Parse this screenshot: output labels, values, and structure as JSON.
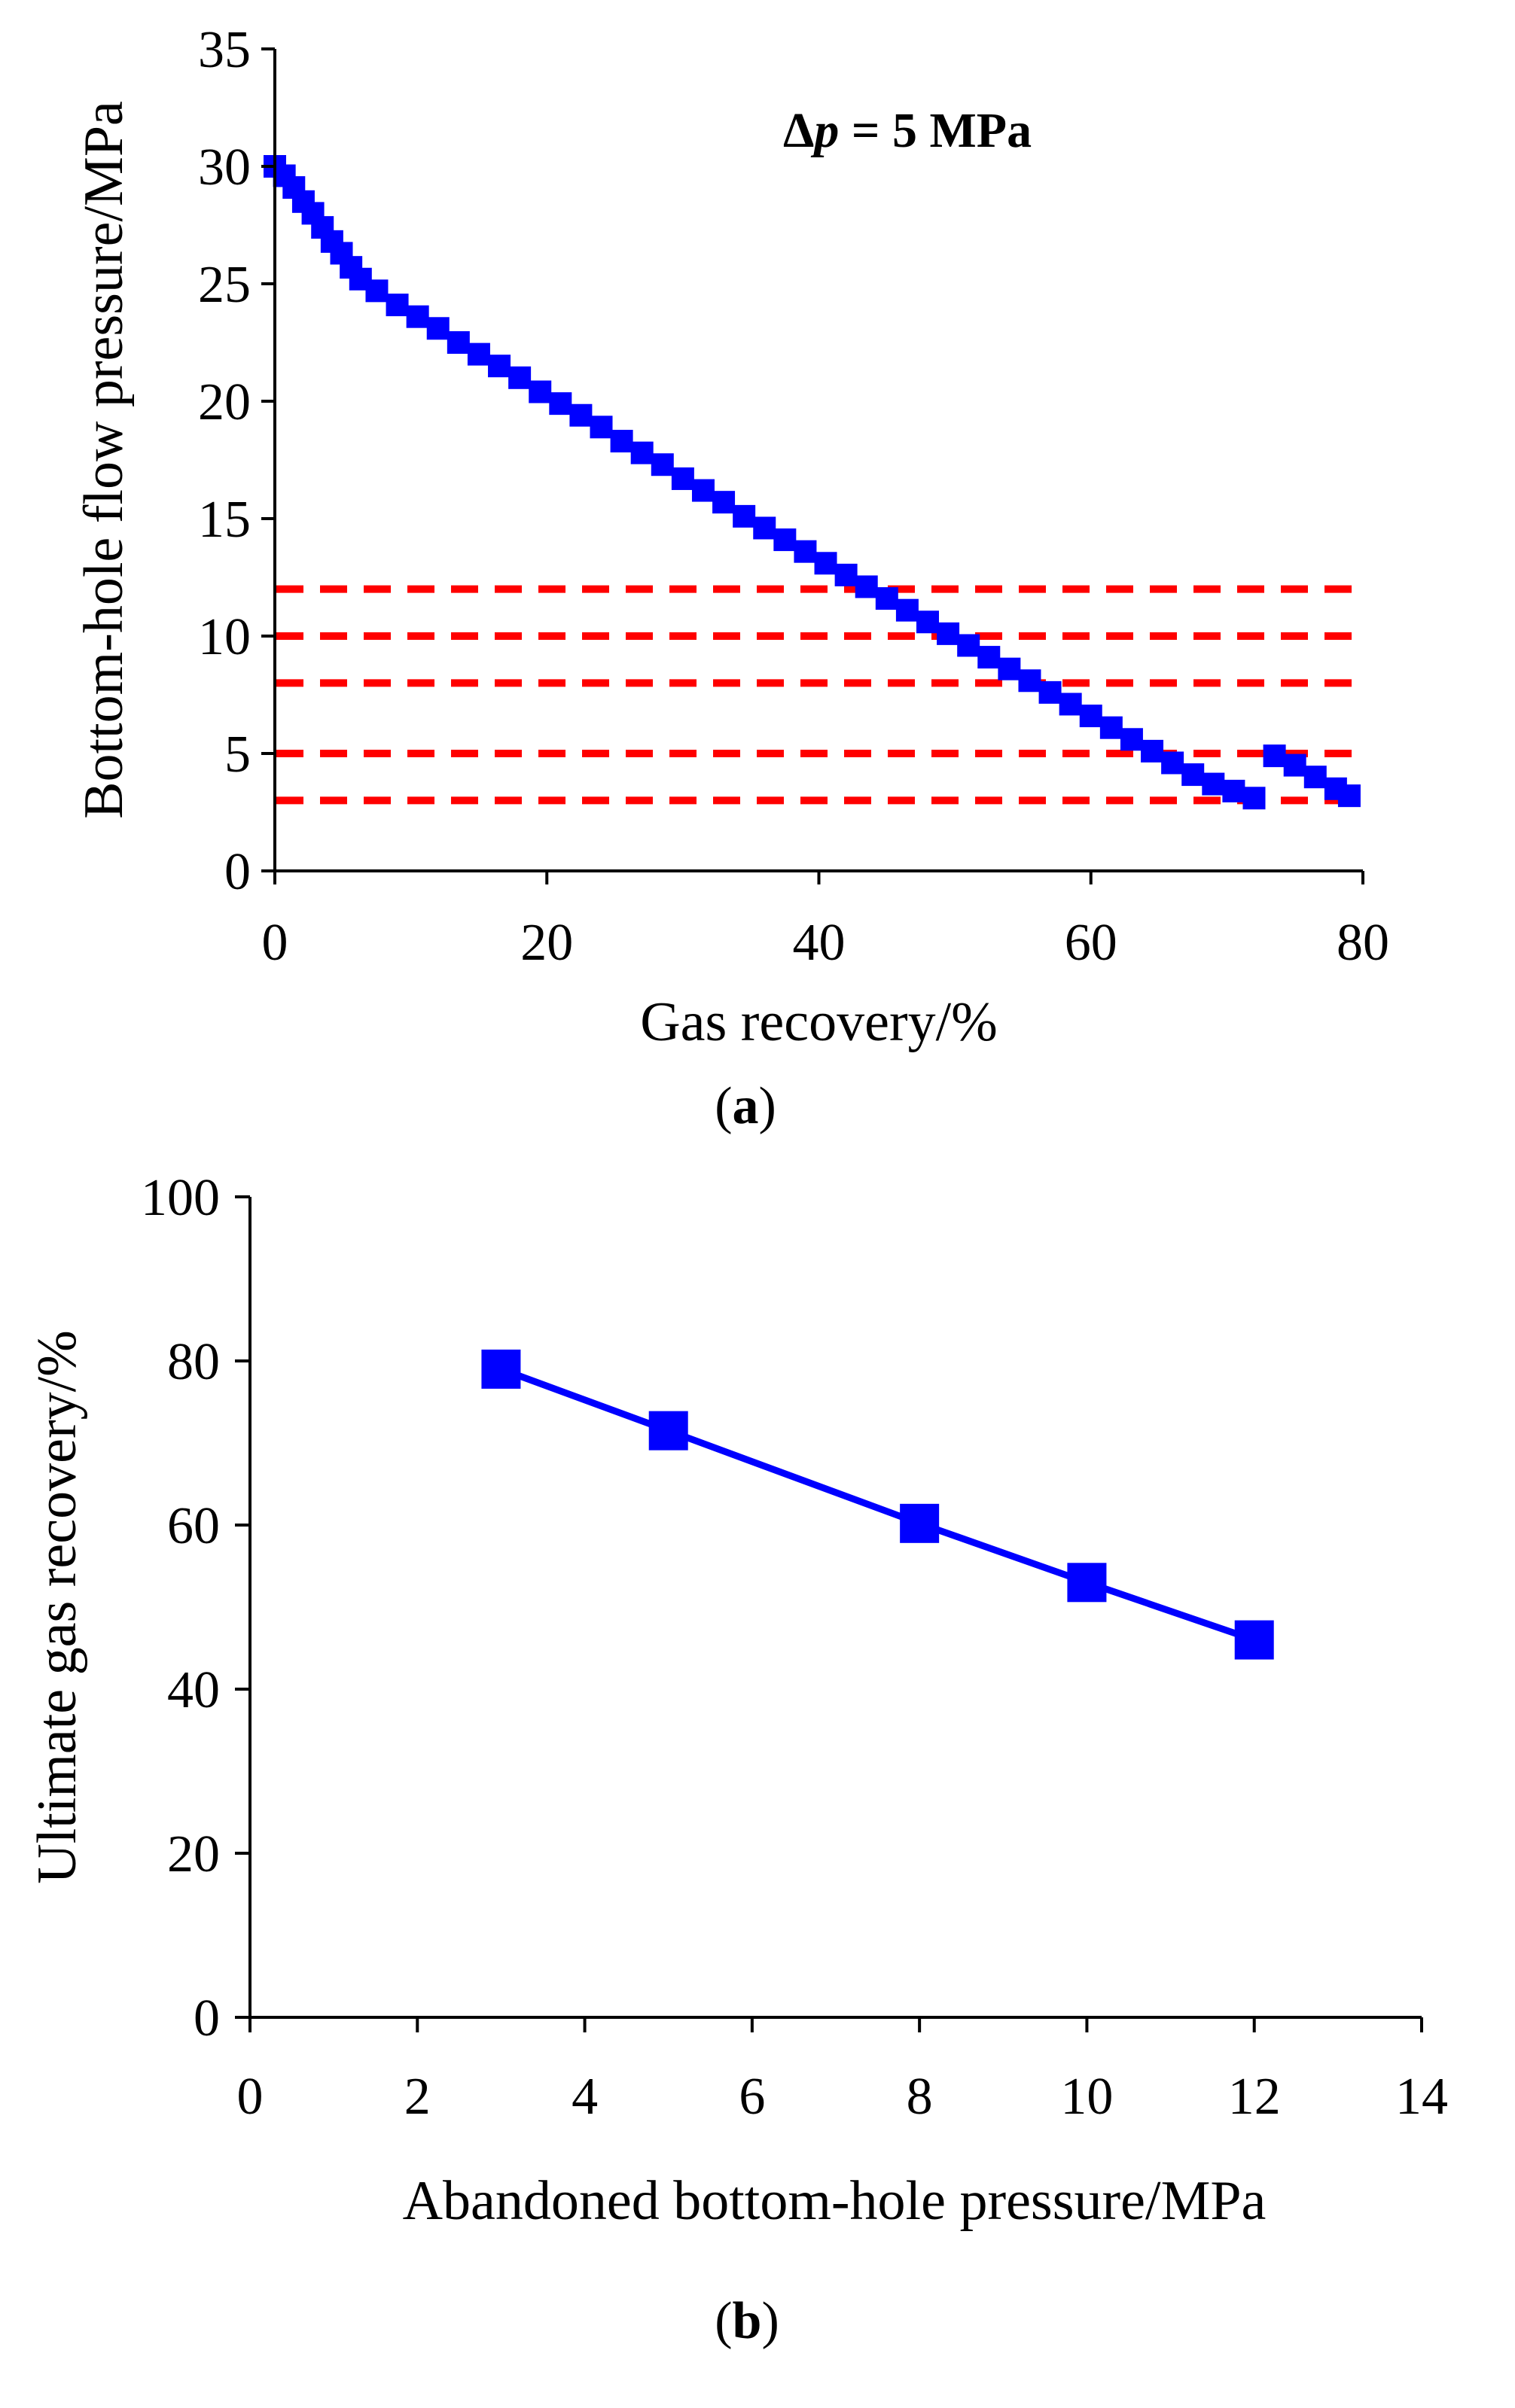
{
  "colors": {
    "series": "#0000ff",
    "threshold": "#ff0000",
    "axis": "#000000"
  },
  "chart_data": [
    {
      "type": "scatter",
      "panel_label": "a",
      "title": "",
      "annotation_symbol": "Δ",
      "annotation_var": "p",
      "annotation_rest": " = 5 MPa",
      "xlabel": "Gas recovery/%",
      "ylabel": "Bottom-hole flow pressure/MPa",
      "xlim": [
        0,
        80
      ],
      "ylim": [
        0,
        35
      ],
      "xticks": [
        0,
        20,
        40,
        60,
        80
      ],
      "yticks": [
        0,
        5,
        10,
        15,
        20,
        25,
        30,
        35
      ],
      "series": [
        {
          "name": "Bottom-hole flow pressure",
          "marker": "square",
          "points": [
            [
              0,
              30
            ],
            [
              0.7,
              29.6
            ],
            [
              1.4,
              29.1
            ],
            [
              2.1,
              28.5
            ],
            [
              2.8,
              28
            ],
            [
              3.5,
              27.4
            ],
            [
              4.2,
              26.8
            ],
            [
              4.9,
              26.3
            ],
            [
              5.6,
              25.7
            ],
            [
              6.3,
              25.2
            ],
            [
              7.5,
              24.7
            ],
            [
              9,
              24.1
            ],
            [
              10.5,
              23.6
            ],
            [
              12,
              23.1
            ],
            [
              13.5,
              22.5
            ],
            [
              15,
              22
            ],
            [
              16.5,
              21.5
            ],
            [
              18,
              21
            ],
            [
              19.5,
              20.4
            ],
            [
              21,
              19.9
            ],
            [
              22.5,
              19.4
            ],
            [
              24,
              18.9
            ],
            [
              25.5,
              18.3
            ],
            [
              27,
              17.8
            ],
            [
              28.5,
              17.3
            ],
            [
              30,
              16.7
            ],
            [
              31.5,
              16.2
            ],
            [
              33,
              15.7
            ],
            [
              34.5,
              15.1
            ],
            [
              36,
              14.6
            ],
            [
              37.5,
              14.1
            ],
            [
              39,
              13.6
            ],
            [
              40.5,
              13.1
            ],
            [
              42,
              12.6
            ],
            [
              43.5,
              12.1
            ],
            [
              45,
              11.6
            ],
            [
              46.5,
              11.1
            ],
            [
              48,
              10.6
            ],
            [
              49.5,
              10.1
            ],
            [
              51,
              9.6
            ],
            [
              52.5,
              9.1
            ],
            [
              54,
              8.6
            ],
            [
              55.5,
              8.1
            ],
            [
              57,
              7.6
            ],
            [
              58.5,
              7.1
            ],
            [
              60,
              6.6
            ],
            [
              61.5,
              6.1
            ],
            [
              63,
              5.6
            ],
            [
              64.5,
              5.1
            ],
            [
              66,
              4.6
            ],
            [
              67.5,
              4.1
            ],
            [
              69,
              3.7
            ],
            [
              70.5,
              3.4
            ],
            [
              72,
              3.1
            ],
            [
              73.5,
              4.9
            ],
            [
              75,
              4.5
            ],
            [
              76.5,
              4
            ],
            [
              78,
              3.5
            ],
            [
              79,
              3.2
            ]
          ]
        }
      ],
      "threshold_lines": [
        12,
        10,
        8,
        5,
        3
      ],
      "legend": "none"
    },
    {
      "type": "line",
      "panel_label": "b",
      "title": "",
      "xlabel": "Abandoned bottom-hole pressure/MPa",
      "ylabel": "Ultimate gas recovery/%",
      "xlim": [
        0,
        14
      ],
      "ylim": [
        0,
        100
      ],
      "xticks": [
        0,
        2,
        4,
        6,
        8,
        10,
        12,
        14
      ],
      "yticks": [
        0,
        20,
        40,
        60,
        80,
        100
      ],
      "series": [
        {
          "name": "Ultimate gas recovery",
          "marker": "square",
          "x": [
            3,
            5,
            8,
            10,
            12
          ],
          "y": [
            79,
            71.5,
            60.2,
            53,
            46
          ]
        }
      ],
      "legend": "none"
    }
  ]
}
